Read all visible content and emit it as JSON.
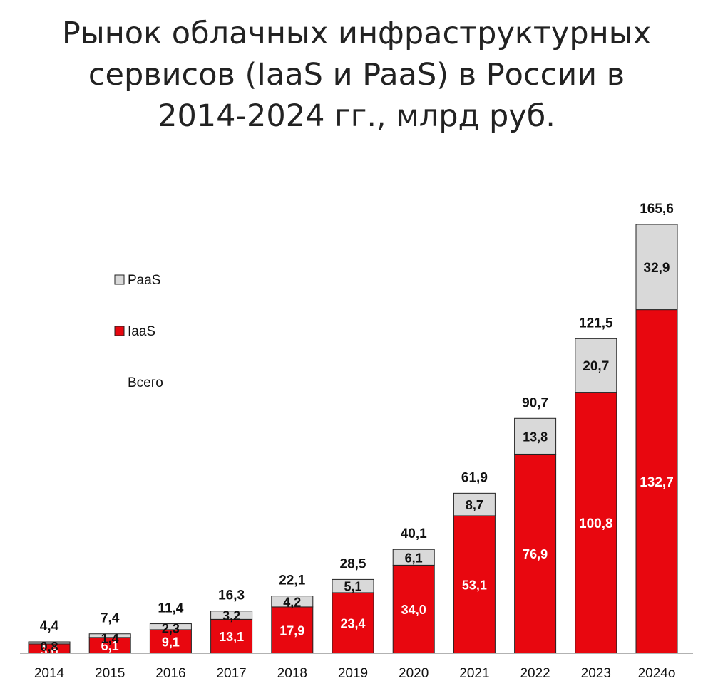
{
  "title_lines": [
    "Рынок облачных инфраструктурных",
    "сервисов (IaaS и PaaS) в России в",
    "2014-2024 гг., млрд руб."
  ],
  "chart_data": {
    "type": "bar",
    "stacked": true,
    "title": "Рынок облачных инфраструктурных сервисов (IaaS и PaaS) в России в 2014-2024 гг., млрд руб.",
    "categories": [
      "2014",
      "2015",
      "2016",
      "2017",
      "2018",
      "2019",
      "2020",
      "2021",
      "2022",
      "2023",
      "2024о"
    ],
    "series": [
      {
        "name": "IaaS",
        "color": "#e8070f",
        "values": [
          3.6,
          6.1,
          9.1,
          13.1,
          17.9,
          23.4,
          34.0,
          53.1,
          76.9,
          100.8,
          132.7
        ],
        "labels": [
          "3,6",
          "6,1",
          "9,1",
          "13,1",
          "17,9",
          "23,4",
          "34,0",
          "53,1",
          "76,9",
          "100,8",
          "132,7"
        ]
      },
      {
        "name": "PaaS",
        "color": "#d9d9d9",
        "values": [
          0.8,
          1.4,
          2.3,
          3.2,
          4.2,
          5.1,
          6.1,
          8.7,
          13.8,
          20.7,
          32.9
        ],
        "labels": [
          "0,8",
          "1,4",
          "2,3",
          "3,2",
          "4,2",
          "5,1",
          "6,1",
          "8,7",
          "13,8",
          "20,7",
          "32,9"
        ]
      }
    ],
    "totals": {
      "name": "Всего",
      "values": [
        4.4,
        7.4,
        11.4,
        16.3,
        22.1,
        28.5,
        40.1,
        61.9,
        90.7,
        121.5,
        165.6
      ],
      "labels": [
        "4,4",
        "7,4",
        "11,4",
        "16,3",
        "22,1",
        "28,5",
        "40,1",
        "61,9",
        "90,7",
        "121,5",
        "165,6"
      ]
    },
    "ylim": [
      0,
      175
    ],
    "grid": false,
    "legend_position": "left",
    "legend": [
      "PaaS",
      "IaaS",
      "Всего"
    ]
  }
}
